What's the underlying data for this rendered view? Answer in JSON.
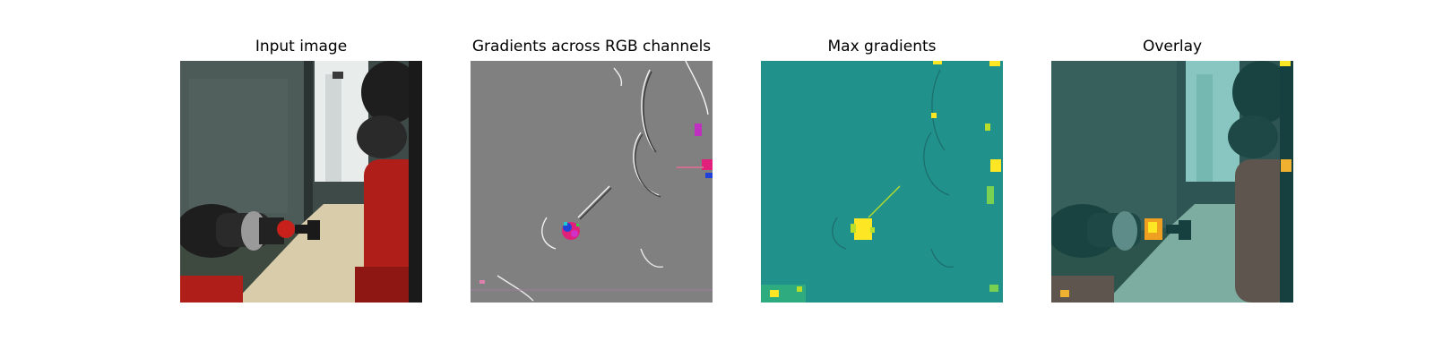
{
  "panels": [
    {
      "title": "Input image"
    },
    {
      "title": "Gradients across RGB channels"
    },
    {
      "title": "Max gradients"
    },
    {
      "title": "Overlay"
    }
  ],
  "colors": {
    "background": "#ffffff",
    "gradient_gray": "#808080",
    "max_gradient_teal": "#21918c",
    "max_gradient_yellow": "#fde725",
    "robot_red": "#b01e1a",
    "robot_black": "#1e1e1e",
    "floor_beige": "#d8ccaa",
    "overlay_tint": "#2a8a86"
  }
}
